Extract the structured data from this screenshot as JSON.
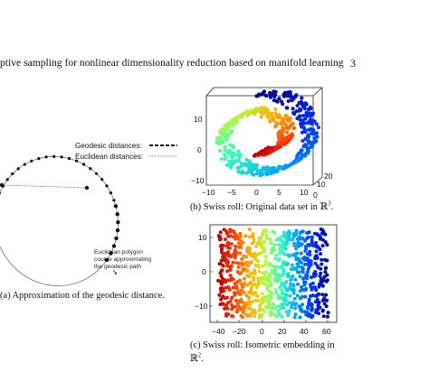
{
  "header": {
    "title": "ptive sampling for nonlinear dimensionality reduction based on manifold learning",
    "page_number": "3"
  },
  "figure_a": {
    "legend_geodesic": "Geodesic distances:",
    "legend_euclidean": "Euclidean distances:",
    "annotation": [
      "Euclidean polygon",
      "course approximating",
      "the geodesic path"
    ],
    "caption": "(a) Approximation of the geodesic distance."
  },
  "figure_b": {
    "caption_text": "(b) Swiss roll: Original data set in ",
    "caption_math": "ℝ",
    "caption_sup": "3",
    "caption_end": ".",
    "z_ticks": [
      "10",
      "0",
      "−10"
    ],
    "x_ticks": [
      "−10",
      "−5",
      "0",
      "5",
      "10"
    ],
    "y_ticks": [
      "0",
      "10",
      "20"
    ]
  },
  "figure_c": {
    "caption_line1": "(c) Swiss roll: Isometric embedding in",
    "caption_math": "ℝ",
    "caption_sup": "2",
    "caption_end": ".",
    "x_ticks": [
      "−40",
      "−20",
      "0",
      "20",
      "40",
      "60"
    ],
    "y_ticks": [
      "10",
      "0",
      "−10"
    ]
  },
  "colors": {
    "colormap": [
      "#c00000",
      "#ff4000",
      "#ffb000",
      "#b0ff40",
      "#30ffc0",
      "#00a0ff",
      "#0030ff",
      "#00008c"
    ]
  }
}
